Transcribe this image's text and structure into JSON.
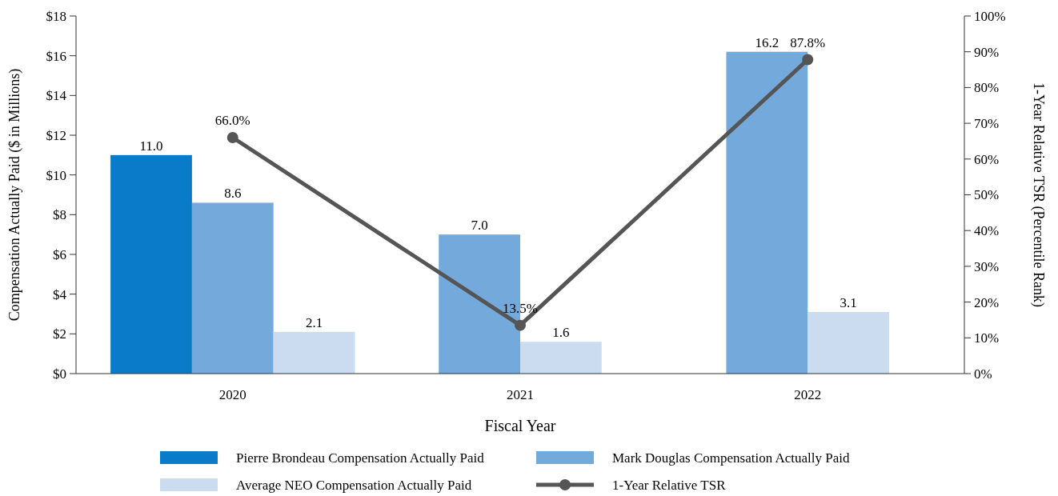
{
  "chart_data": {
    "type": "bar",
    "categories": [
      "2020",
      "2021",
      "2022"
    ],
    "xlabel": "Fiscal Year",
    "ylabel": "Compensation Actually Paid ($ in Millions)",
    "y2label": "1-Year Relative TSR (Percentile Rank)",
    "ylim": [
      0,
      18
    ],
    "yticks": [
      {
        "value": 0,
        "label": "$0"
      },
      {
        "value": 2,
        "label": "$2"
      },
      {
        "value": 4,
        "label": "$4"
      },
      {
        "value": 6,
        "label": "$6"
      },
      {
        "value": 8,
        "label": "$8"
      },
      {
        "value": 10,
        "label": "$10"
      },
      {
        "value": 12,
        "label": "$12"
      },
      {
        "value": 14,
        "label": "$14"
      },
      {
        "value": 16,
        "label": "$16"
      },
      {
        "value": 18,
        "label": "$18"
      }
    ],
    "y2lim": [
      0,
      100
    ],
    "y2ticks": [
      {
        "value": 0,
        "label": "0%"
      },
      {
        "value": 10,
        "label": "10%"
      },
      {
        "value": 20,
        "label": "20%"
      },
      {
        "value": 30,
        "label": "30%"
      },
      {
        "value": 40,
        "label": "40%"
      },
      {
        "value": 50,
        "label": "50%"
      },
      {
        "value": 60,
        "label": "60%"
      },
      {
        "value": 70,
        "label": "70%"
      },
      {
        "value": 80,
        "label": "80%"
      },
      {
        "value": 90,
        "label": "90%"
      },
      {
        "value": 100,
        "label": "100%"
      }
    ],
    "series": [
      {
        "name": "Pierre Brondeau Compensation Actually Paid",
        "color": "#0a7bc8",
        "values": [
          11.0,
          null,
          null
        ],
        "value_labels": [
          "11.0",
          null,
          null
        ]
      },
      {
        "name": "Mark Douglas Compensation Actually Paid",
        "color": "#74a9dc",
        "values": [
          8.6,
          7.0,
          16.2
        ],
        "value_labels": [
          "8.6",
          "7.0",
          "16.2"
        ]
      },
      {
        "name": "Average NEO Compensation Actually Paid",
        "color": "#cbdcf1",
        "values": [
          2.1,
          1.6,
          3.1
        ],
        "value_labels": [
          "2.1",
          "1.6",
          "3.1"
        ]
      },
      {
        "name": "1-Year Relative TSR",
        "type": "line",
        "axis": "y2",
        "color": "#555555",
        "marker": "circle",
        "values": [
          66.0,
          13.5,
          87.8
        ],
        "value_labels": [
          "66.0%",
          "13.5%",
          "87.8%"
        ]
      }
    ],
    "grid": false,
    "legend": "bottom"
  }
}
